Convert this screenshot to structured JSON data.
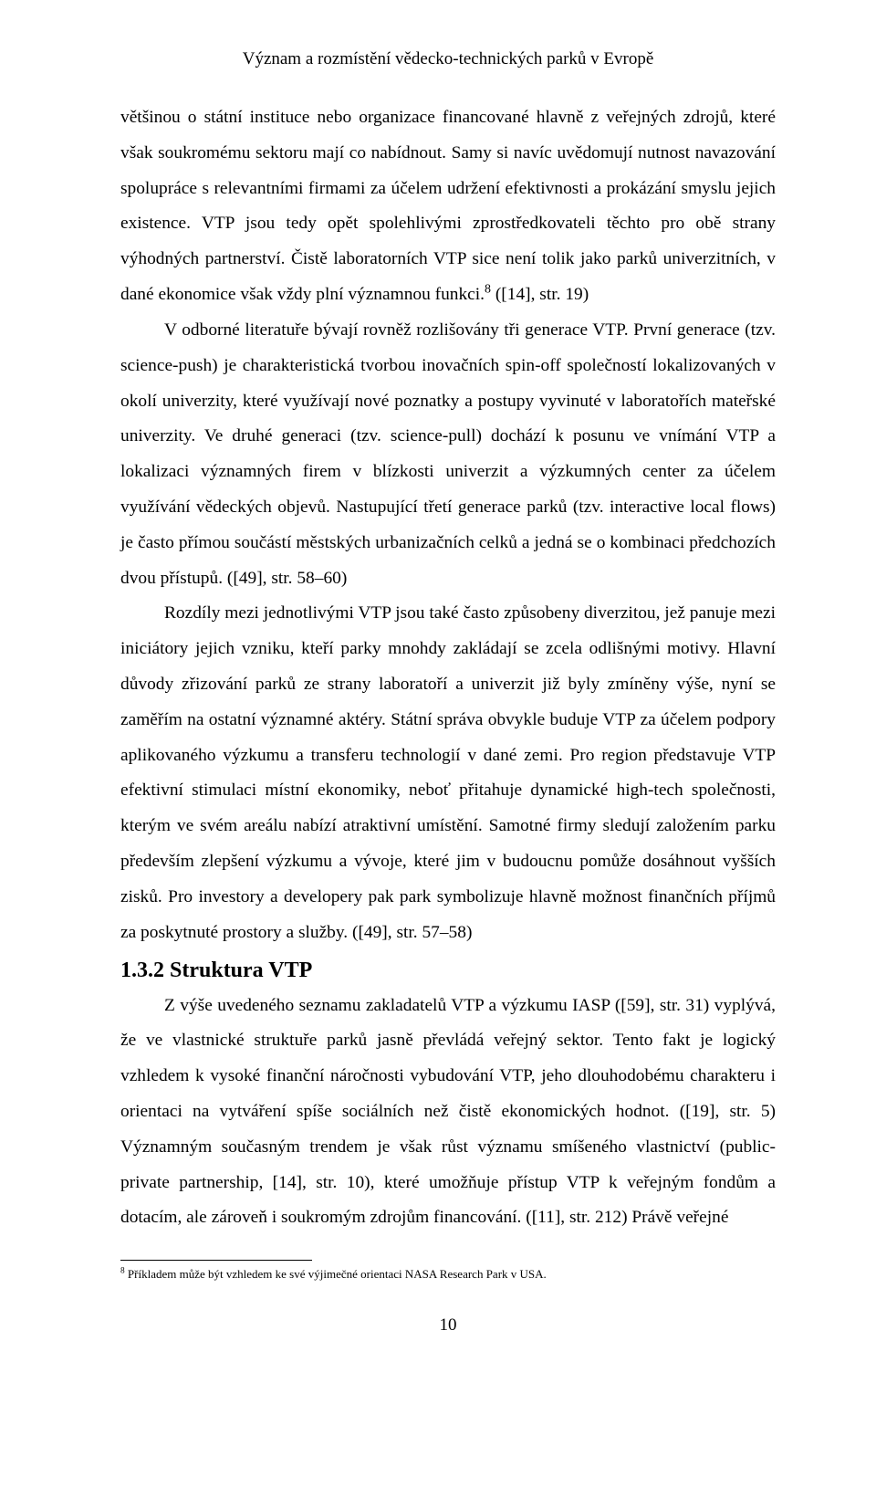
{
  "runningHead": "Význam a rozmístění vědecko-technických parků v Evropě",
  "paragraphs": {
    "p1a": "většinou o státní instituce nebo organizace financované hlavně z veřejných zdrojů, které však soukromému sektoru mají co nabídnout. Samy si navíc uvědomují nutnost navazování spolupráce s relevantními firmami za účelem udržení efektivnosti a prokázání smyslu jejich existence. VTP jsou tedy opět spolehlivými zprostředkovateli těchto pro obě strany výhodných partnerství. Čistě laboratorních VTP sice není tolik jako parků univerzitních, v dané ekonomice však vždy plní významnou funkci.",
    "p1b": " ([14], str. 19)",
    "p2": "V odborné literatuře bývají rovněž rozlišovány tři generace VTP. První generace (tzv. science-push) je charakteristická tvorbou inovačních spin-off společností lokalizovaných v okolí univerzity, které využívají nové poznatky a postupy vyvinuté v laboratořích mateřské univerzity. Ve druhé generaci (tzv. science-pull) dochází k posunu ve vnímání VTP a lokalizaci významných firem v blízkosti univerzit a výzkumných center za účelem využívání vědeckých objevů. Nastupující třetí generace parků (tzv. interactive local flows) je často přímou součástí městských urbanizačních celků a jedná se o kombinaci předchozích dvou přístupů. ([49], str. 58–60)",
    "p3": "Rozdíly mezi jednotlivými VTP jsou také často způsobeny diverzitou, jež panuje mezi iniciátory jejich vzniku, kteří parky mnohdy zakládají se zcela odlišnými motivy. Hlavní důvody zřizování parků ze strany laboratoří a univerzit již byly zmíněny výše, nyní se zaměřím na ostatní významné aktéry. Státní správa obvykle buduje VTP za účelem podpory aplikovaného výzkumu a transferu technologií v dané zemi. Pro region představuje VTP efektivní stimulaci místní ekonomiky, neboť přitahuje dynamické high-tech společnosti, kterým ve svém areálu nabízí atraktivní umístění. Samotné firmy sledují založením parku především zlepšení výzkumu a vývoje, které jim v budoucnu pomůže dosáhnout vyšších zisků. Pro investory a developery pak park symbolizuje hlavně možnost finančních příjmů za poskytnuté prostory a služby. ([49], str. 57–58)",
    "p4": "Z výše uvedeného seznamu zakladatelů VTP a výzkumu IASP ([59], str. 31) vyplývá, že ve vlastnické struktuře parků jasně převládá veřejný sektor. Tento fakt je logický vzhledem k vysoké finanční náročnosti vybudování VTP, jeho dlouhodobému charakteru i orientaci na vytváření spíše sociálních než čistě ekonomických hodnot. ([19], str. 5) Významným současným trendem je však růst významu smíšeného vlastnictví (public-private partnership, [14], str. 10), které umožňuje přístup VTP k veřejným fondům a dotacím, ale zároveň i soukromým zdrojům financování. ([11], str. 212) Právě veřejné"
  },
  "sectionHeading": "1.3.2 Struktura VTP",
  "footnote": {
    "marker": "8",
    "text": " Příkladem může být vzhledem ke své výjimečné orientaci NASA Research Park v USA."
  },
  "pageNumber": "10"
}
